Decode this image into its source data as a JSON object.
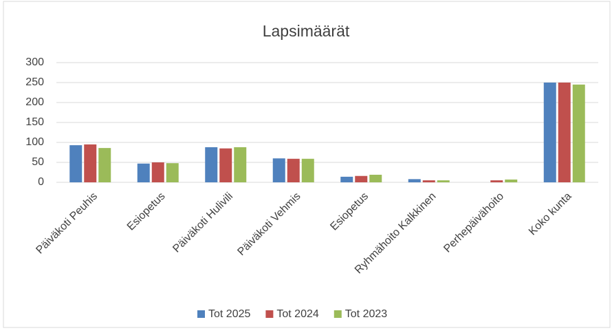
{
  "chart_data": {
    "type": "bar",
    "title": "Lapsimäärät",
    "categories": [
      "Päiväkoti Peuhis",
      "Esiopetus",
      "Päiväkoti Hulivili",
      "Päiväkoti Vehmis",
      "Esiopetus",
      "Ryhmähoito Kalkkinen",
      "Perhepäivähoito",
      "Koko kunta"
    ],
    "series": [
      {
        "name": "Tot 2025",
        "color": "#4f81bd",
        "values": [
          93,
          47,
          88,
          60,
          14,
          8,
          null,
          250
        ]
      },
      {
        "name": "Tot 2024",
        "color": "#c0504d",
        "values": [
          95,
          50,
          85,
          59,
          16,
          5,
          5,
          250
        ]
      },
      {
        "name": "Tot 2023",
        "color": "#9bbb59",
        "values": [
          86,
          48,
          88,
          59,
          19,
          5,
          7,
          245
        ]
      }
    ],
    "ylim": [
      0,
      300
    ],
    "yticks": [
      0,
      50,
      100,
      150,
      200,
      250,
      300
    ],
    "grid": true,
    "legend": "bottom"
  }
}
